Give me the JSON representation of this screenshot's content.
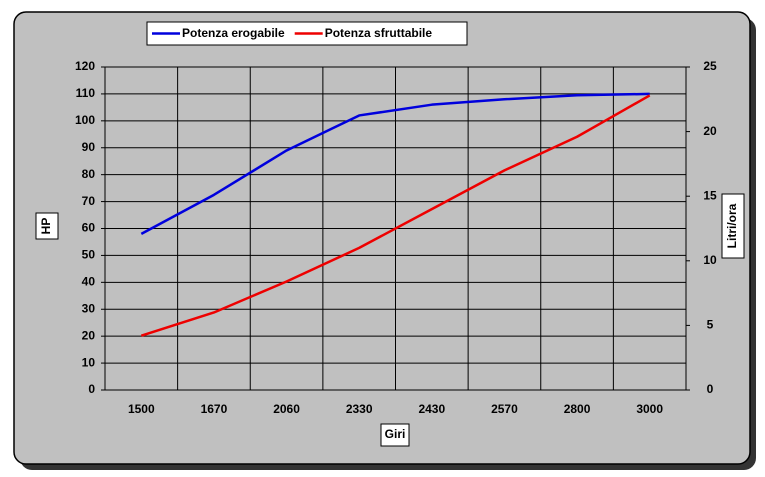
{
  "chart_data": {
    "type": "line",
    "categories": [
      "1500",
      "1670",
      "2060",
      "2330",
      "2430",
      "2570",
      "2800",
      "3000"
    ],
    "series": [
      {
        "name": "Potenza erogabile",
        "color": "#0000dd",
        "values": [
          58,
          72.5,
          89,
          102,
          106,
          108,
          109.5,
          110
        ]
      },
      {
        "name": "Potenza sfruttabile",
        "color": "#ee0000",
        "axis": "y2",
        "values": [
          4.2,
          6.0,
          8.4,
          11.0,
          14.0,
          17.0,
          19.6,
          22.8
        ]
      }
    ],
    "x_label": "Giri",
    "y_label": "HP",
    "y2_label": "Litri/ora",
    "ylim": [
      0,
      120
    ],
    "yticks": [
      0,
      10,
      20,
      30,
      40,
      50,
      60,
      70,
      80,
      90,
      100,
      110,
      120
    ],
    "y2lim": [
      0,
      25
    ],
    "y2ticks": [
      0,
      5,
      10,
      15,
      20,
      25
    ],
    "grid": true,
    "legend": "top"
  }
}
